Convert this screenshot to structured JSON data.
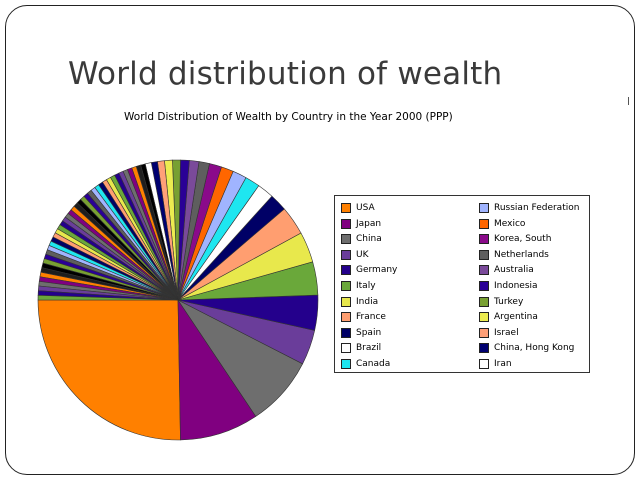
{
  "slide": {
    "title": "World distribution of wealth"
  },
  "chart_data": {
    "type": "pie",
    "title": "World Distribution of Wealth by Country in the Year 2000 (PPP)",
    "series": [
      {
        "name": "USA",
        "value": 25.0,
        "color": "#ff8000"
      },
      {
        "name": "Japan",
        "value": 9.0,
        "color": "#800080"
      },
      {
        "name": "China",
        "value": 8.0,
        "color": "#6e6e6e"
      },
      {
        "name": "UK",
        "value": 4.0,
        "color": "#6a3d9a"
      },
      {
        "name": "Germany",
        "value": 4.0,
        "color": "#24008c"
      },
      {
        "name": "Italy",
        "value": 3.8,
        "color": "#6aa83a"
      },
      {
        "name": "India",
        "value": 3.5,
        "color": "#e8e84c"
      },
      {
        "name": "France",
        "value": 3.3,
        "color": "#ff9e70"
      },
      {
        "name": "Spain",
        "value": 2.0,
        "color": "#000066"
      },
      {
        "name": "Brazil",
        "value": 1.9,
        "color": "#ffffff"
      },
      {
        "name": "Canada",
        "value": 1.7,
        "color": "#1ee6f0"
      },
      {
        "name": "Russian Federation",
        "value": 1.6,
        "color": "#a0b4ff"
      },
      {
        "name": "Mexico",
        "value": 1.4,
        "color": "#ff6600"
      },
      {
        "name": "Korea, South",
        "value": 1.4,
        "color": "#8a0a8a"
      },
      {
        "name": "Netherlands",
        "value": 1.2,
        "color": "#5e5e5e"
      },
      {
        "name": "Australia",
        "value": 1.1,
        "color": "#7a4a9a"
      },
      {
        "name": "Indonesia",
        "value": 1.0,
        "color": "#2a0096"
      },
      {
        "name": "Turkey",
        "value": 0.9,
        "color": "#78a032"
      },
      {
        "name": "Argentina",
        "value": 0.9,
        "color": "#ecec50"
      },
      {
        "name": "Israel",
        "value": 0.8,
        "color": "#ffa078"
      },
      {
        "name": "China, Hong Kong",
        "value": 0.7,
        "color": "#000070"
      },
      {
        "name": "Iran",
        "value": 0.7,
        "color": "#ffffff"
      }
    ],
    "other_countries": {
      "value": 21.0,
      "colors": [
        "#000000",
        "#1e1e1e",
        "#ff8000",
        "#800080",
        "#6e6e6e",
        "#6a3d9a",
        "#24008c",
        "#6aa83a",
        "#e8e84c",
        "#ff9e70",
        "#000066",
        "#1ee6f0",
        "#a0b4ff",
        "#5e5e5e",
        "#2a0096",
        "#78a032"
      ]
    },
    "legend_position": "right"
  }
}
